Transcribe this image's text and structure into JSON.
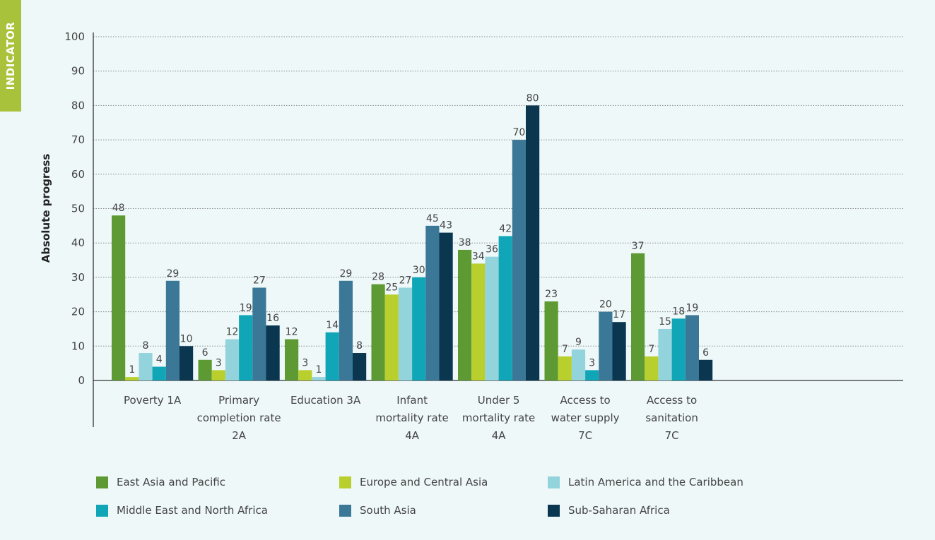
{
  "side_tab": {
    "label": "INDICATOR"
  },
  "colors": {
    "background": "#eef8f9",
    "side_tab": "#a9c23b",
    "axis": "#333333",
    "grid": "#8a8a8a",
    "text": "#444444"
  },
  "chart_data": {
    "type": "bar",
    "title": "",
    "ylabel": "Absolute progress",
    "xlabel": "",
    "ylim": [
      0,
      100
    ],
    "yticks": [
      0,
      10,
      20,
      30,
      40,
      50,
      60,
      70,
      80,
      90,
      100
    ],
    "grid": true,
    "legend_position": "bottom",
    "categories": [
      [
        "Poverty 1A"
      ],
      [
        "Primary",
        "completion rate",
        "2A"
      ],
      [
        "Education 3A"
      ],
      [
        "Infant",
        "mortality rate",
        "4A"
      ],
      [
        "Under 5",
        "mortality rate",
        "4A"
      ],
      [
        "Access to",
        "water supply",
        "7C"
      ],
      [
        "Access to",
        "sanitation",
        "7C"
      ]
    ],
    "series": [
      {
        "name": "East Asia and Pacific",
        "color": "#5e9a34",
        "values": [
          48,
          6,
          12,
          28,
          38,
          23,
          37
        ]
      },
      {
        "name": "Europe and Central Asia",
        "color": "#b8cf2e",
        "values": [
          1,
          3,
          3,
          25,
          34,
          7,
          7
        ]
      },
      {
        "name": "Latin America and the Caribbean",
        "color": "#93d4dc",
        "values": [
          8,
          12,
          1,
          27,
          36,
          9,
          15
        ]
      },
      {
        "name": "Middle East and North Africa",
        "color": "#10a6b8",
        "values": [
          4,
          19,
          14,
          30,
          42,
          3,
          18
        ]
      },
      {
        "name": "South Asia",
        "color": "#3b7796",
        "values": [
          29,
          27,
          29,
          45,
          70,
          20,
          19
        ]
      },
      {
        "name": "Sub-Saharan Africa",
        "color": "#0b3650",
        "values": [
          10,
          16,
          8,
          43,
          80,
          17,
          6
        ]
      }
    ],
    "data_labels": [
      [
        "48",
        "6",
        "12",
        "28",
        "38",
        "23",
        "37"
      ],
      [
        "1",
        "3",
        "3",
        "25",
        "34",
        "7",
        "7"
      ],
      [
        "8",
        "12",
        "1",
        "27",
        "",
        "9",
        "15"
      ],
      [
        "4",
        "19",
        "14",
        "30",
        "42",
        "3",
        "18"
      ],
      [
        "29",
        "27",
        "29",
        "45",
        "70",
        "20",
        "19"
      ],
      [
        "10",
        "16",
        "8",
        "43",
        "80",
        "17",
        "6"
      ]
    ],
    "bar_label_overrides": {
      "4": {
        "2": "36"
      }
    }
  }
}
